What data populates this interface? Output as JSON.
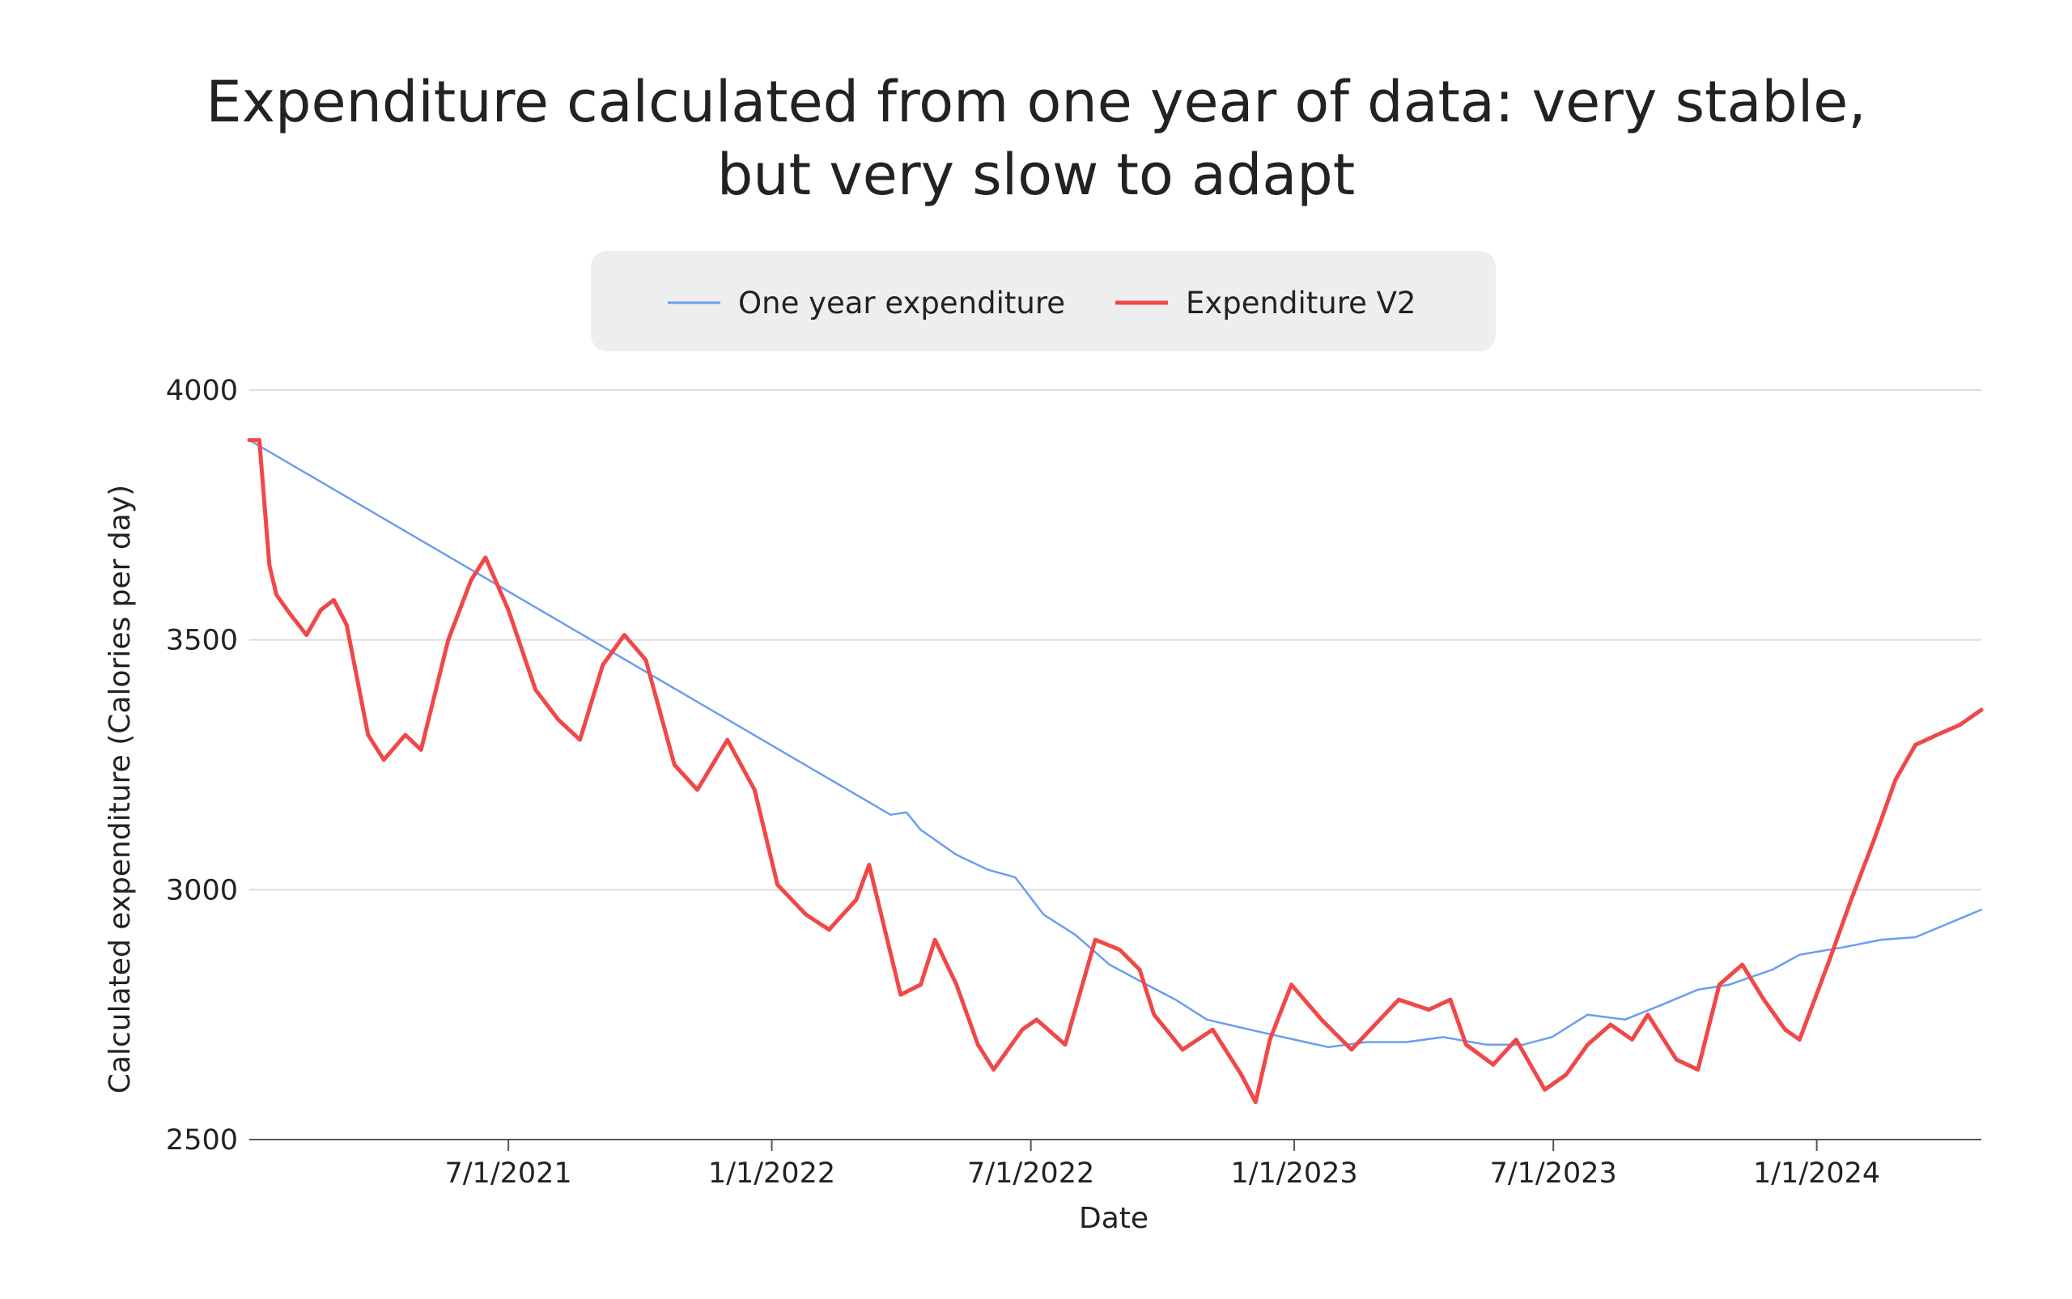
{
  "chart_data": {
    "type": "line",
    "title": [
      "Expenditure calculated from one year of data: very stable,",
      "but very slow to adapt"
    ],
    "xlabel": "Date",
    "ylabel": "Calculated expenditure (Calories per day)",
    "ylim": [
      2500,
      4000
    ],
    "xlim": [
      "2021-01-01",
      "2024-04-25"
    ],
    "yticks": [
      2500,
      3000,
      3500,
      4000
    ],
    "xticks": [
      {
        "date": "2021-07-01",
        "label": "7/1/2021"
      },
      {
        "date": "2022-01-01",
        "label": "1/1/2022"
      },
      {
        "date": "2022-07-01",
        "label": "7/1/2022"
      },
      {
        "date": "2023-01-01",
        "label": "1/1/2023"
      },
      {
        "date": "2023-07-01",
        "label": "7/1/2023"
      },
      {
        "date": "2024-01-01",
        "label": "1/1/2024"
      }
    ],
    "grid": "horizontal",
    "legend": "top-center",
    "series": [
      {
        "name": "One year expenditure",
        "color": "#6a9ef0",
        "points": [
          [
            "2021-01-01",
            3900
          ],
          [
            "2022-03-25",
            3150
          ],
          [
            "2022-04-05",
            3155
          ],
          [
            "2022-04-15",
            3120
          ],
          [
            "2022-05-10",
            3070
          ],
          [
            "2022-06-01",
            3040
          ],
          [
            "2022-06-20",
            3025
          ],
          [
            "2022-07-10",
            2950
          ],
          [
            "2022-08-01",
            2910
          ],
          [
            "2022-08-25",
            2850
          ],
          [
            "2022-09-20",
            2810
          ],
          [
            "2022-10-10",
            2780
          ],
          [
            "2022-11-01",
            2740
          ],
          [
            "2022-12-01",
            2720
          ],
          [
            "2023-01-01",
            2700
          ],
          [
            "2023-01-25",
            2685
          ],
          [
            "2023-02-20",
            2695
          ],
          [
            "2023-03-20",
            2695
          ],
          [
            "2023-04-15",
            2705
          ],
          [
            "2023-05-15",
            2690
          ],
          [
            "2023-06-10",
            2690
          ],
          [
            "2023-06-30",
            2705
          ],
          [
            "2023-07-25",
            2750
          ],
          [
            "2023-08-20",
            2740
          ],
          [
            "2023-09-15",
            2770
          ],
          [
            "2023-10-10",
            2800
          ],
          [
            "2023-11-01",
            2810
          ],
          [
            "2023-12-01",
            2840
          ],
          [
            "2023-12-20",
            2870
          ],
          [
            "2024-01-20",
            2885
          ],
          [
            "2024-02-15",
            2900
          ],
          [
            "2024-03-10",
            2905
          ],
          [
            "2024-04-25",
            2960
          ]
        ]
      },
      {
        "name": "Expenditure V2",
        "color": "#f04848",
        "points": [
          [
            "2021-01-01",
            3900
          ],
          [
            "2021-01-08",
            3900
          ],
          [
            "2021-01-15",
            3650
          ],
          [
            "2021-01-20",
            3590
          ],
          [
            "2021-01-30",
            3550
          ],
          [
            "2021-02-10",
            3510
          ],
          [
            "2021-02-20",
            3560
          ],
          [
            "2021-03-01",
            3580
          ],
          [
            "2021-03-10",
            3530
          ],
          [
            "2021-03-25",
            3310
          ],
          [
            "2021-04-05",
            3260
          ],
          [
            "2021-04-20",
            3310
          ],
          [
            "2021-05-01",
            3280
          ],
          [
            "2021-05-20",
            3500
          ],
          [
            "2021-06-05",
            3620
          ],
          [
            "2021-06-15",
            3665
          ],
          [
            "2021-07-01",
            3560
          ],
          [
            "2021-07-20",
            3400
          ],
          [
            "2021-08-05",
            3340
          ],
          [
            "2021-08-20",
            3300
          ],
          [
            "2021-09-05",
            3450
          ],
          [
            "2021-09-20",
            3510
          ],
          [
            "2021-10-05",
            3460
          ],
          [
            "2021-10-25",
            3250
          ],
          [
            "2021-11-10",
            3200
          ],
          [
            "2021-12-01",
            3300
          ],
          [
            "2021-12-20",
            3200
          ],
          [
            "2022-01-05",
            3010
          ],
          [
            "2022-01-25",
            2950
          ],
          [
            "2022-02-10",
            2920
          ],
          [
            "2022-03-01",
            2980
          ],
          [
            "2022-03-10",
            3050
          ],
          [
            "2022-04-01",
            2790
          ],
          [
            "2022-04-15",
            2810
          ],
          [
            "2022-04-25",
            2900
          ],
          [
            "2022-05-10",
            2810
          ],
          [
            "2022-05-25",
            2690
          ],
          [
            "2022-06-05",
            2640
          ],
          [
            "2022-06-25",
            2720
          ],
          [
            "2022-07-05",
            2740
          ],
          [
            "2022-07-25",
            2690
          ],
          [
            "2022-08-15",
            2900
          ],
          [
            "2022-09-01",
            2880
          ],
          [
            "2022-09-15",
            2840
          ],
          [
            "2022-09-25",
            2750
          ],
          [
            "2022-10-15",
            2680
          ],
          [
            "2022-11-05",
            2720
          ],
          [
            "2022-11-25",
            2630
          ],
          [
            "2022-12-05",
            2575
          ],
          [
            "2022-12-15",
            2700
          ],
          [
            "2022-12-30",
            2810
          ],
          [
            "2023-01-20",
            2740
          ],
          [
            "2023-02-10",
            2680
          ],
          [
            "2023-03-05",
            2750
          ],
          [
            "2023-03-15",
            2780
          ],
          [
            "2023-04-05",
            2760
          ],
          [
            "2023-04-20",
            2780
          ],
          [
            "2023-05-01",
            2690
          ],
          [
            "2023-05-20",
            2650
          ],
          [
            "2023-06-05",
            2700
          ],
          [
            "2023-06-25",
            2600
          ],
          [
            "2023-07-10",
            2630
          ],
          [
            "2023-07-25",
            2690
          ],
          [
            "2023-08-10",
            2730
          ],
          [
            "2023-08-25",
            2700
          ],
          [
            "2023-09-05",
            2750
          ],
          [
            "2023-09-25",
            2660
          ],
          [
            "2023-10-10",
            2640
          ],
          [
            "2023-10-25",
            2810
          ],
          [
            "2023-11-10",
            2850
          ],
          [
            "2023-11-25",
            2780
          ],
          [
            "2023-12-10",
            2720
          ],
          [
            "2023-12-20",
            2700
          ],
          [
            "2024-01-10",
            2860
          ],
          [
            "2024-01-25",
            2980
          ],
          [
            "2024-02-10",
            3100
          ],
          [
            "2024-02-25",
            3220
          ],
          [
            "2024-03-10",
            3290
          ],
          [
            "2024-03-25",
            3310
          ],
          [
            "2024-04-10",
            3330
          ],
          [
            "2024-04-25",
            3360
          ]
        ]
      }
    ]
  }
}
